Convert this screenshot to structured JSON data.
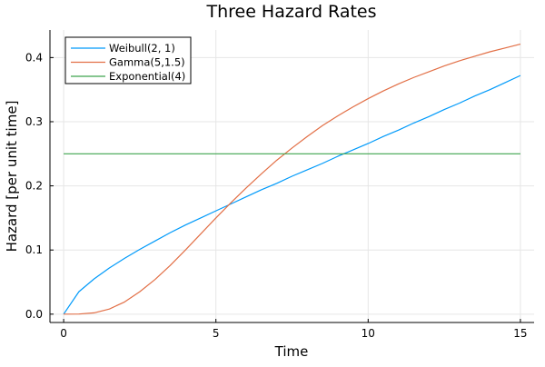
{
  "chart_data": {
    "type": "line",
    "title": "Three Hazard Rates",
    "xlabel": "Time",
    "ylabel": "Hazard [per unit time]",
    "xlim": [
      -0.45,
      15.45
    ],
    "ylim": [
      -0.013,
      0.443
    ],
    "xticks": [
      0,
      5,
      10,
      15
    ],
    "xtick_labels": [
      "0",
      "5",
      "10",
      "15"
    ],
    "yticks": [
      0.0,
      0.1,
      0.2,
      0.3,
      0.4
    ],
    "ytick_labels": [
      "0.0",
      "0.1",
      "0.2",
      "0.3",
      "0.4"
    ],
    "grid": true,
    "legend_position": "top-left",
    "series": [
      {
        "name": "Weibull(2, 1)",
        "color": "#009AFA",
        "x": [
          0,
          0.5,
          1,
          1.5,
          2,
          2.5,
          3,
          3.5,
          4,
          4.5,
          5,
          5.5,
          6,
          6.5,
          7,
          7.5,
          8,
          8.5,
          9,
          9.5,
          10,
          10.5,
          11,
          11.5,
          12,
          12.5,
          13,
          13.5,
          14,
          14.5,
          15
        ],
        "y": [
          0.0,
          0.035,
          0.055,
          0.072,
          0.087,
          0.101,
          0.114,
          0.127,
          0.139,
          0.15,
          0.161,
          0.172,
          0.183,
          0.194,
          0.204,
          0.215,
          0.225,
          0.235,
          0.246,
          0.256,
          0.266,
          0.277,
          0.287,
          0.298,
          0.308,
          0.319,
          0.329,
          0.34,
          0.35,
          0.361,
          0.372
        ]
      },
      {
        "name": "Gamma(5,1.5)",
        "color": "#E26F46",
        "x": [
          0,
          0.5,
          1,
          1.5,
          2,
          2.5,
          3,
          3.5,
          4,
          4.5,
          5,
          5.5,
          6,
          6.5,
          7,
          7.5,
          8,
          8.5,
          9,
          9.5,
          10,
          10.5,
          11,
          11.5,
          12,
          12.5,
          13,
          13.5,
          14,
          14.5,
          15
        ],
        "y": [
          0.0,
          0.0002,
          0.002,
          0.008,
          0.019,
          0.035,
          0.054,
          0.076,
          0.1,
          0.125,
          0.15,
          0.174,
          0.197,
          0.219,
          0.24,
          0.259,
          0.277,
          0.294,
          0.309,
          0.323,
          0.336,
          0.348,
          0.359,
          0.369,
          0.378,
          0.387,
          0.395,
          0.402,
          0.409,
          0.415,
          0.421
        ]
      },
      {
        "name": "Exponential(4)",
        "color": "#3EA44E",
        "x": [
          0,
          15
        ],
        "y": [
          0.25,
          0.25
        ]
      }
    ]
  }
}
